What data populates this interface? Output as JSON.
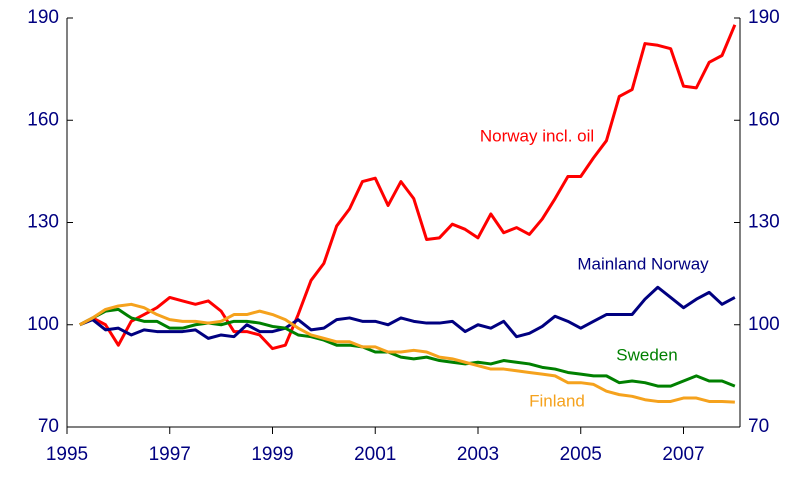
{
  "chart_data": {
    "type": "line",
    "x": [
      1995.25,
      1995.5,
      1995.75,
      1996,
      1996.25,
      1996.5,
      1996.75,
      1997,
      1997.25,
      1997.5,
      1997.75,
      1998,
      1998.25,
      1998.5,
      1998.75,
      1999,
      1999.25,
      1999.5,
      1999.75,
      2000,
      2000.25,
      2000.5,
      2000.75,
      2001,
      2001.25,
      2001.5,
      2001.75,
      2002,
      2002.25,
      2002.5,
      2002.75,
      2003,
      2003.25,
      2003.5,
      2003.75,
      2004,
      2004.25,
      2004.5,
      2004.75,
      2005,
      2005.25,
      2005.5,
      2005.75,
      2006,
      2006.25,
      2006.5,
      2006.75,
      2007,
      2007.25,
      2007.5,
      2007.75,
      2008
    ],
    "xlim": [
      1995,
      2008.1
    ],
    "xticks": [
      1995,
      1997,
      1999,
      2001,
      2003,
      2005,
      2007
    ],
    "ylim": [
      70,
      190
    ],
    "yticks": [
      70,
      100,
      130,
      160,
      190
    ],
    "y2lim": [
      70,
      190
    ],
    "y2ticks": [
      70,
      100,
      130,
      160,
      190
    ],
    "series": [
      {
        "name": "Norway incl. oil",
        "color": "#ff0000",
        "values": [
          100,
          102,
          100,
          94,
          101,
          103,
          105,
          108,
          107,
          106,
          107,
          104,
          98,
          98,
          97,
          93,
          94,
          103,
          113,
          118,
          129,
          134,
          142,
          143,
          135,
          142,
          137,
          125,
          125.5,
          129.5,
          128,
          125.5,
          132.5,
          127,
          128.5,
          126.5,
          131,
          137,
          143.5,
          143.5,
          149,
          154,
          167,
          169,
          182.5,
          182,
          181,
          170,
          169.5,
          177,
          179,
          188
        ]
      },
      {
        "name": "Mainland Norway",
        "color": "#000080",
        "values": [
          100,
          101.5,
          98.5,
          99,
          97,
          98.5,
          98,
          98,
          98,
          98.5,
          96,
          97,
          96.5,
          100,
          98,
          98,
          99,
          101.5,
          98.5,
          99,
          101.5,
          102,
          101,
          101,
          100,
          102,
          101,
          100.5,
          100.5,
          101,
          98,
          100,
          99,
          101,
          96.5,
          97.5,
          99.5,
          102.5,
          101,
          99,
          101,
          103,
          103,
          103,
          107.5,
          111,
          108,
          105,
          107.5,
          109.5,
          106,
          108
        ]
      },
      {
        "name": "Sweden",
        "color": "#008000",
        "values": [
          100,
          102,
          104,
          104.5,
          102,
          101,
          101,
          99,
          99,
          100,
          100.5,
          100,
          101,
          101,
          100.5,
          99.5,
          99,
          97,
          96.5,
          95.5,
          94,
          94,
          93.5,
          92,
          92,
          90.5,
          90,
          90.5,
          89.5,
          89,
          88.5,
          89,
          88.5,
          89.5,
          89,
          88.5,
          87.5,
          87,
          86,
          85.5,
          85,
          85,
          83,
          83.5,
          83,
          82,
          82,
          83.5,
          85,
          83.5,
          83.5,
          82
        ]
      },
      {
        "name": "Finland",
        "color": "#f5a21d",
        "values": [
          100,
          102,
          104.5,
          105.5,
          106,
          105,
          103,
          101.5,
          101,
          101,
          100.5,
          101,
          103,
          103,
          104,
          103,
          101.5,
          99,
          97,
          96,
          95,
          95,
          93.5,
          93.5,
          92,
          92,
          92.5,
          92,
          90.5,
          90,
          89,
          88,
          87,
          87,
          86.5,
          86,
          85.5,
          85,
          83,
          83,
          82.5,
          80.5,
          79.5,
          79,
          78,
          77.5,
          77.5,
          78.5,
          78.5,
          77.5,
          77.5,
          77.3
        ]
      }
    ]
  }
}
